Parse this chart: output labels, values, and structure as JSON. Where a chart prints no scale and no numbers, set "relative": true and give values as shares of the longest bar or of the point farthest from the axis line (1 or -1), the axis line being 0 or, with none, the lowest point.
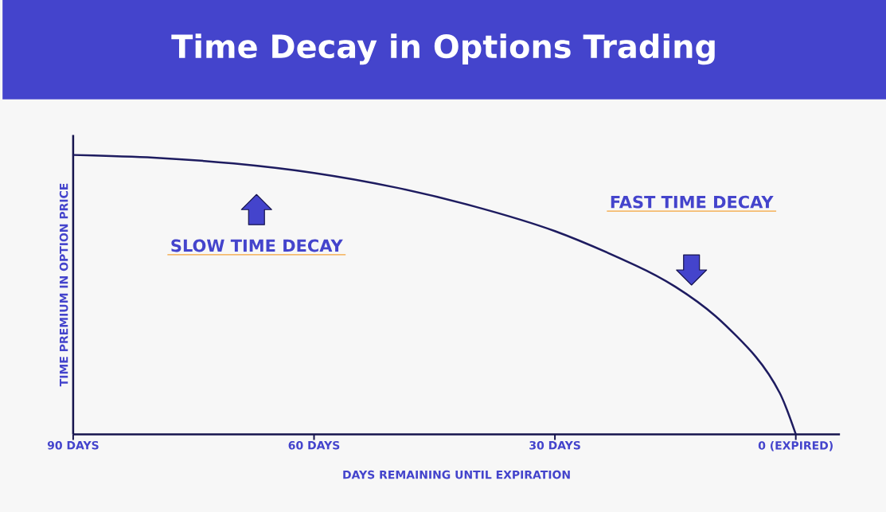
{
  "chart_data": {
    "type": "line",
    "title": "Time Decay in Options Trading",
    "xlabel": "DAYS REMAINING UNTIL EXPIRATION",
    "ylabel": "TIME PREMIUM IN OPTION PRICE",
    "relative": true,
    "xlim": [
      90,
      -5.5
    ],
    "xticks": [
      {
        "value": 90,
        "label": "90 DAYS"
      },
      {
        "value": 60,
        "label": "60 DAYS"
      },
      {
        "value": 30,
        "label": "30 DAYS"
      },
      {
        "value": 0,
        "label": "0 (EXPIRED)"
      }
    ],
    "annotations": [
      "SLOW TIME DECAY",
      "FAST TIME DECAY"
    ],
    "series": [
      {
        "color": "#1e1c60",
        "x": [
          90,
          80,
          70,
          60,
          50,
          40,
          30,
          20,
          15,
          10,
          5,
          2,
          0
        ],
        "values": [
          1.0,
          0.99,
          0.969,
          0.935,
          0.884,
          0.815,
          0.727,
          0.605,
          0.528,
          0.423,
          0.278,
          0.148,
          0
        ]
      }
    ]
  }
}
